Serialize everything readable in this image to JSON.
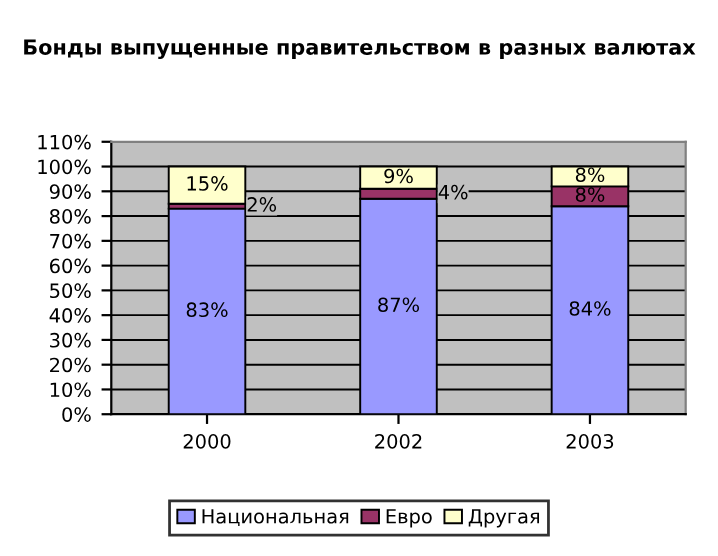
{
  "chart_data": {
    "type": "bar",
    "stacked": true,
    "title": "Бонды выпущенные правительством в разных валютах",
    "categories": [
      "2000",
      "2002",
      "2003"
    ],
    "series": [
      {
        "name": "Национальная",
        "color": "#9999ff",
        "values": [
          83,
          87,
          84
        ],
        "value_labels": [
          "83%",
          "87%",
          "84%"
        ]
      },
      {
        "name": "Евро",
        "color": "#993366",
        "values": [
          2,
          4,
          8
        ],
        "value_labels": [
          "2%",
          "4%",
          "8%"
        ]
      },
      {
        "name": "Другая",
        "color": "#ffffcc",
        "values": [
          15,
          9,
          8
        ],
        "value_labels": [
          "15%",
          "9%",
          "8%"
        ]
      }
    ],
    "ylim": [
      0,
      110
    ],
    "yticks": [
      {
        "value": 0,
        "label": "0%"
      },
      {
        "value": 10,
        "label": "10%"
      },
      {
        "value": 20,
        "label": "20%"
      },
      {
        "value": 30,
        "label": "30%"
      },
      {
        "value": 40,
        "label": "40%"
      },
      {
        "value": 50,
        "label": "50%"
      },
      {
        "value": 60,
        "label": "60%"
      },
      {
        "value": 70,
        "label": "70%"
      },
      {
        "value": 80,
        "label": "80%"
      },
      {
        "value": 90,
        "label": "90%"
      },
      {
        "value": 100,
        "label": "100%"
      },
      {
        "value": 110,
        "label": "110%"
      }
    ],
    "grid": "y",
    "legend": "bottom"
  }
}
